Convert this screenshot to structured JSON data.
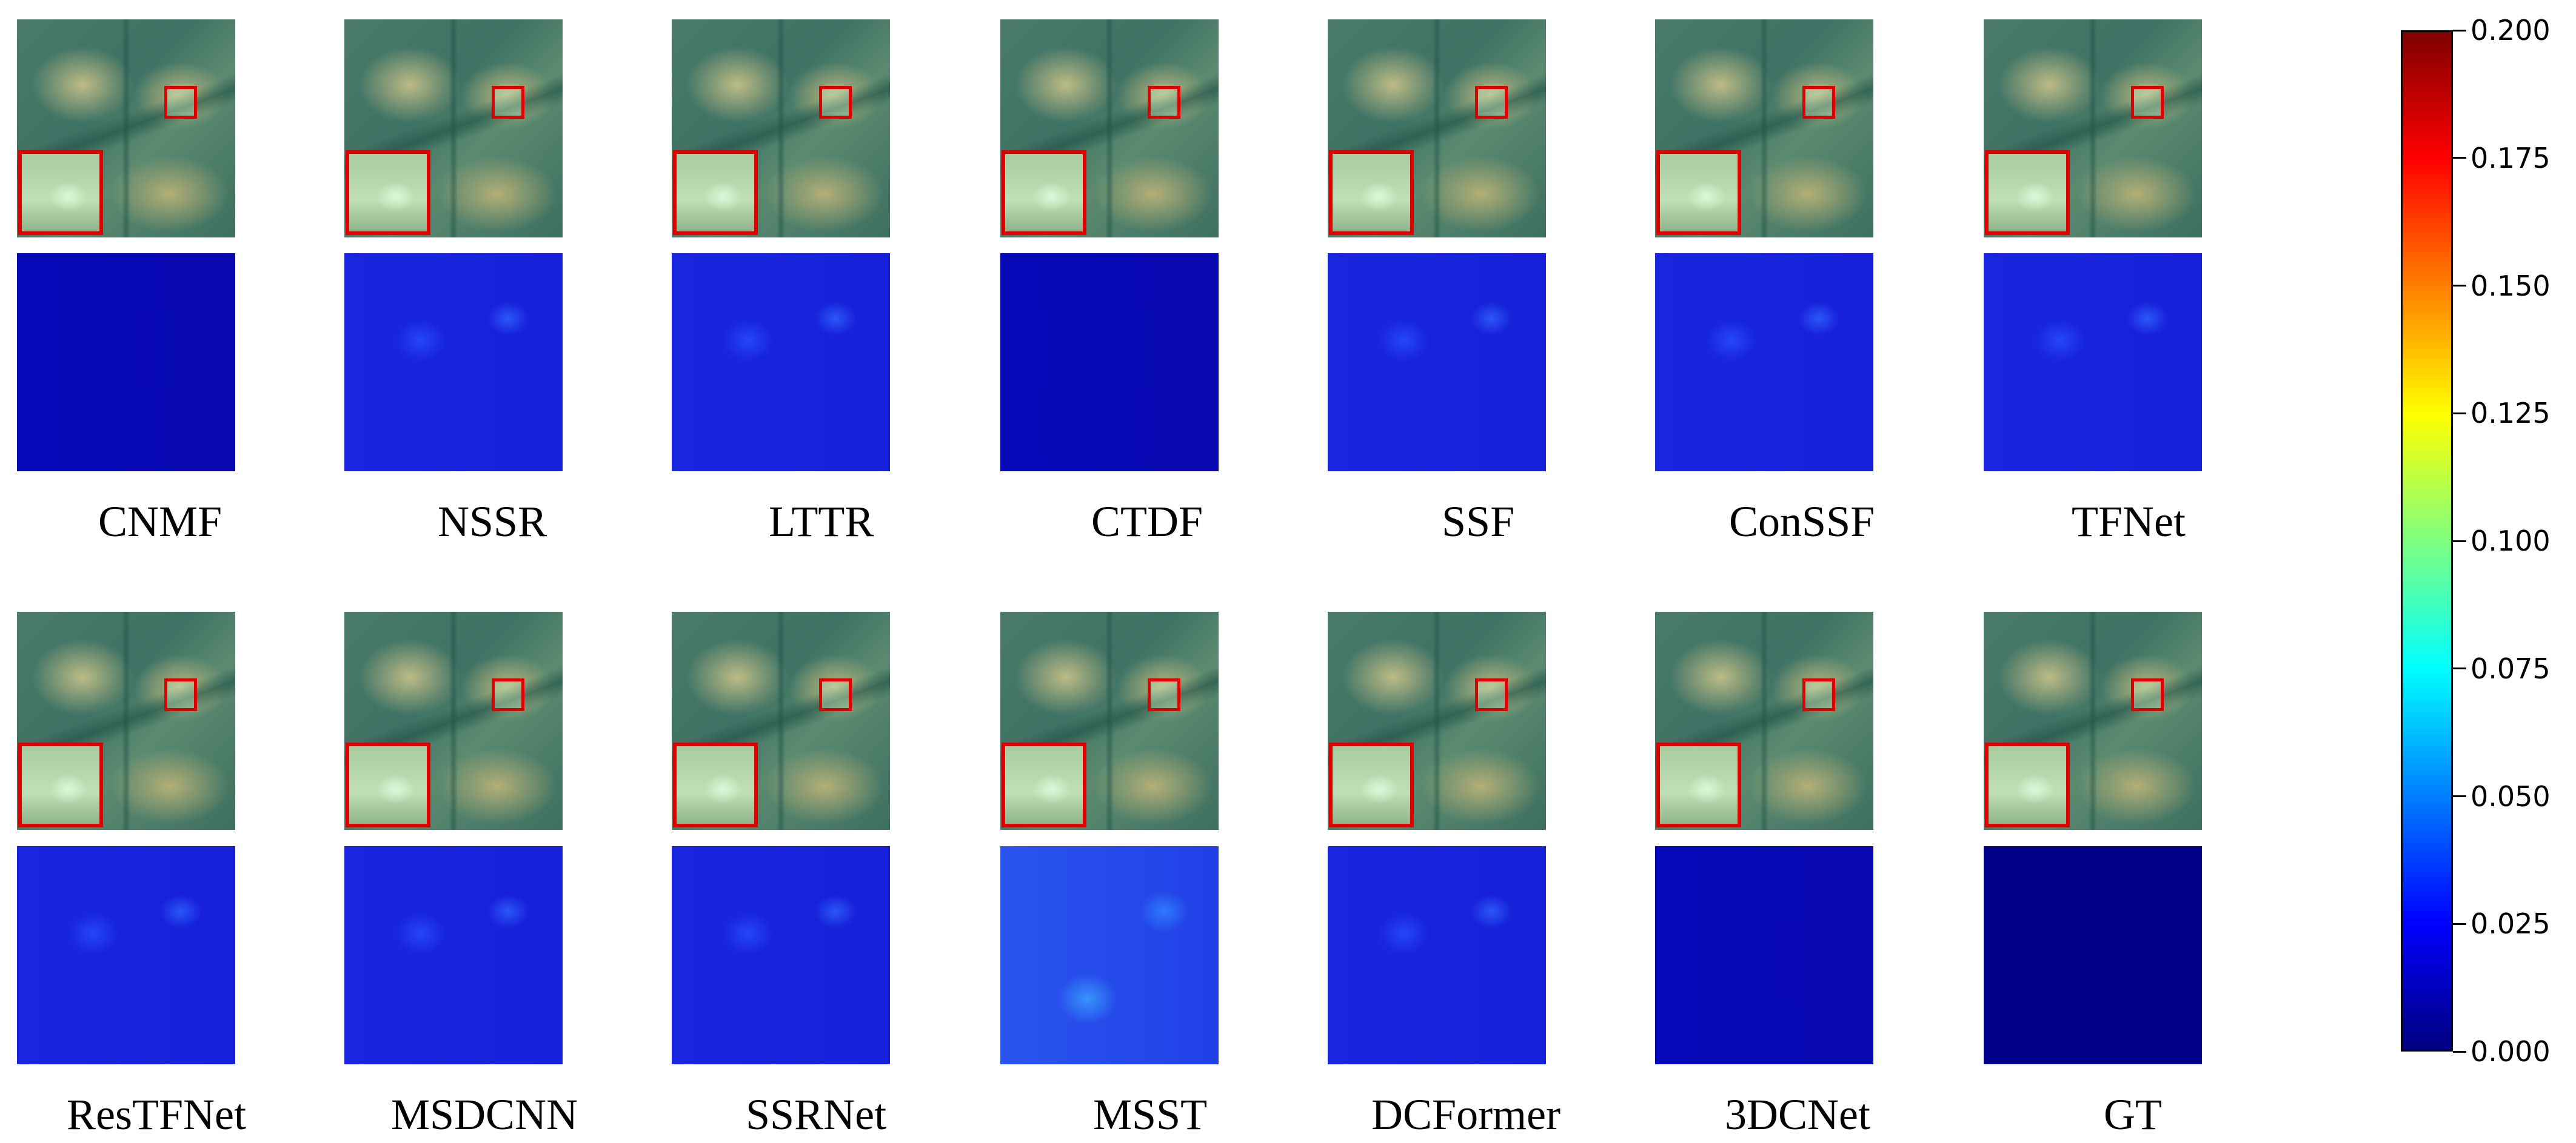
{
  "rows": [
    {
      "methods": [
        {
          "label": "CNMF",
          "err": "low"
        },
        {
          "label": "NSSR",
          "err": "mid"
        },
        {
          "label": "LTTR",
          "err": "mid"
        },
        {
          "label": "CTDF",
          "err": "low"
        },
        {
          "label": "SSF",
          "err": "mid"
        },
        {
          "label": "ConSSF",
          "err": "mid"
        },
        {
          "label": "TFNet",
          "err": "mid"
        }
      ]
    },
    {
      "methods": [
        {
          "label": "ResTFNet",
          "err": "mid"
        },
        {
          "label": "MSDCNN",
          "err": "mid"
        },
        {
          "label": "SSRNet",
          "err": "mid"
        },
        {
          "label": "MSST",
          "err": "high"
        },
        {
          "label": "DCFormer",
          "err": "mid"
        },
        {
          "label": "3DCNet",
          "err": "low"
        },
        {
          "label": "GT",
          "err": "gt"
        }
      ]
    }
  ],
  "colorbar": {
    "min": 0.0,
    "max": 0.2,
    "colormap": "jet",
    "ticks": [
      "0.000",
      "0.025",
      "0.050",
      "0.075",
      "0.100",
      "0.125",
      "0.150",
      "0.175",
      "0.200"
    ]
  }
}
